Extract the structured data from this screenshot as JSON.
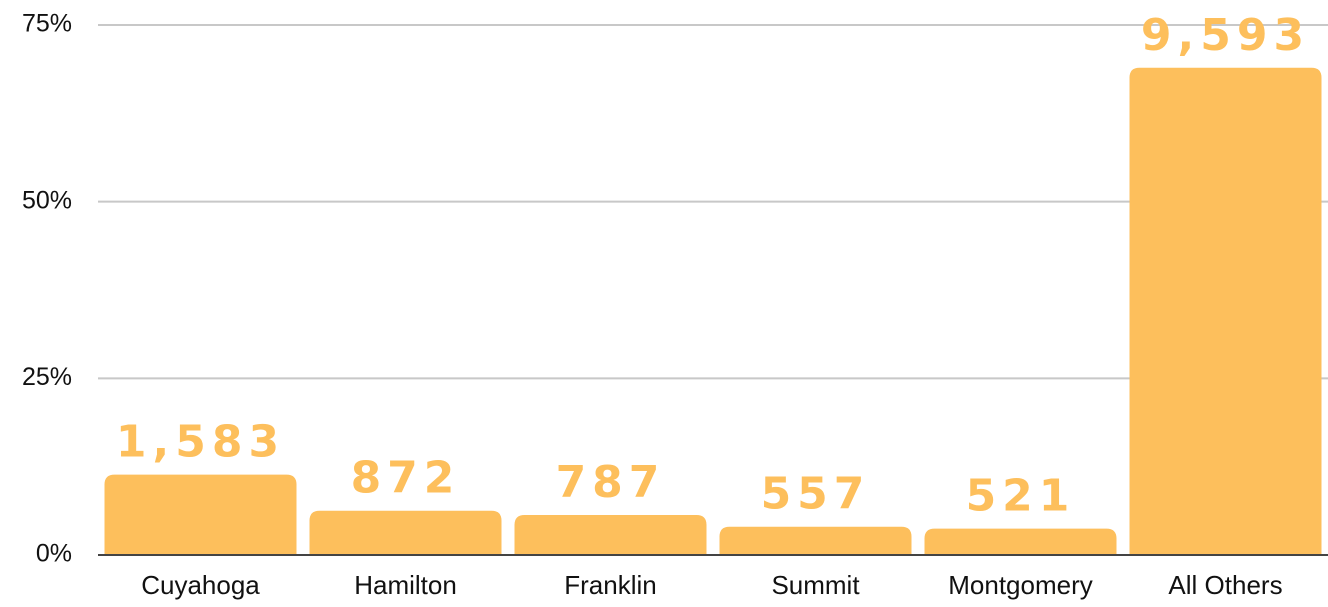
{
  "chart_data": {
    "type": "bar",
    "categories": [
      "Cuyahoga",
      "Hamilton",
      "Franklin",
      "Summit",
      "Montgomery",
      "All Others"
    ],
    "values": [
      11.38,
      6.27,
      5.66,
      4.0,
      3.74,
      68.95
    ],
    "data_labels": [
      "1,583",
      "872",
      "787",
      "557",
      "521",
      "9,593"
    ],
    "color": "#fdbf5c",
    "ylim": [
      0,
      75
    ],
    "yticks": [
      {
        "value": 0,
        "label": "0%"
      },
      {
        "value": 25,
        "label": "25%"
      },
      {
        "value": 50,
        "label": "50%"
      },
      {
        "value": 75,
        "label": "75%"
      }
    ],
    "grid": true
  }
}
